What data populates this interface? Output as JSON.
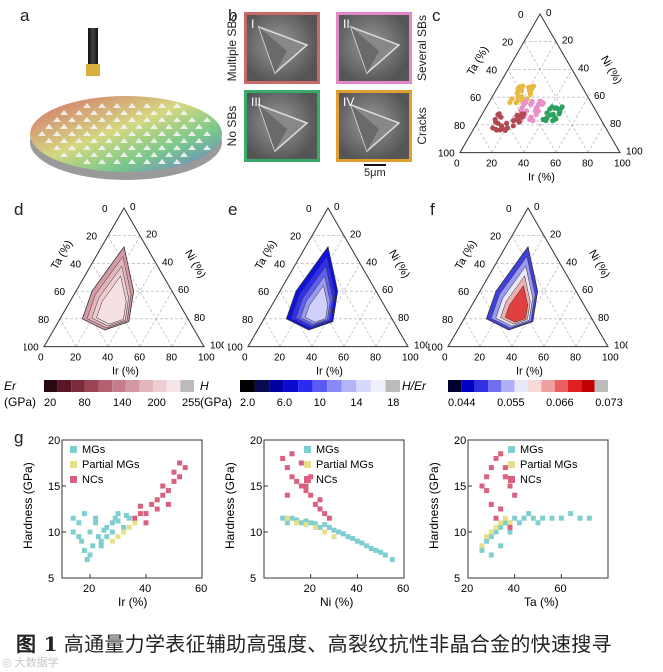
{
  "panels": {
    "a": "a",
    "b": "b",
    "c": "c",
    "d": "d",
    "e": "e",
    "f": "f",
    "g": "g"
  },
  "panel_b": {
    "quadrants": [
      {
        "roman": "I",
        "side_label": "Multiple SBs",
        "border": "#c96a6a"
      },
      {
        "roman": "II",
        "side_label": "Several SBs",
        "border": "#e088c8"
      },
      {
        "roman": "III",
        "side_label": "No SBs",
        "border": "#3aaa6a"
      },
      {
        "roman": "IV",
        "side_label": "Cracks",
        "border": "#e0a030"
      }
    ],
    "scale_bar": "5μm"
  },
  "ternary": {
    "axis_ta": "Ta (%)",
    "axis_ni": "Ni (%)",
    "axis_ir": "Ir (%)",
    "ticks": [
      "0",
      "20",
      "40",
      "60",
      "80",
      "100"
    ]
  },
  "colorbars": {
    "er": {
      "label": "Er",
      "unit": "(GPa)",
      "ticks": [
        "20",
        "80",
        "140",
        "200",
        "255"
      ],
      "colors": [
        "#2a0a12",
        "#5a1626",
        "#7a2a3a",
        "#9a4455",
        "#b46070",
        "#c47c8a",
        "#d498a4",
        "#e2b4bc",
        "#eccdd2",
        "#f5e4e8",
        "#bbbbbb"
      ]
    },
    "h": {
      "label": "H",
      "unit": "(GPa)",
      "ticks": [
        "2.0",
        "6.0",
        "10",
        "14",
        "18"
      ],
      "colors": [
        "#000000",
        "#0a0a50",
        "#0000a0",
        "#0a0ad0",
        "#2a2af0",
        "#5a5af4",
        "#8a8af6",
        "#b4b4f8",
        "#d8d8fa",
        "#f0f0fc",
        "#bbbbbb"
      ]
    },
    "he": {
      "label": "H/Er",
      "ticks": [
        "0.044",
        "0.055",
        "0.066",
        "0.073"
      ],
      "colors": [
        "#000030",
        "#0000c0",
        "#3030e0",
        "#7070ee",
        "#b0b0f4",
        "#e8e8f8",
        "#f8d8d8",
        "#f0a0a0",
        "#e86060",
        "#e02020",
        "#c00000",
        "#bbbbbb"
      ]
    }
  },
  "legend": {
    "mgs": "MGs",
    "partial": "Partial MGs",
    "ncs": "NCs",
    "colors": {
      "mgs": "#7fcfd0",
      "partial": "#e6e08a",
      "ncs": "#d9607e"
    }
  },
  "scatter_plots": [
    {
      "xlabel": "Ir (%)",
      "ylabel": "Hardness (GPa)",
      "xticks": [
        "20",
        "40",
        "60"
      ],
      "yticks": [
        "5",
        "10",
        "15",
        "20"
      ]
    },
    {
      "xlabel": "Ni (%)",
      "ylabel": "Hardness (GPa)",
      "xticks": [
        "20",
        "40",
        "60"
      ],
      "yticks": [
        "5",
        "10",
        "15",
        "20"
      ]
    },
    {
      "xlabel": "Ta (%)",
      "ylabel": "Hardness (GPa)",
      "xticks": [
        "20",
        "40",
        "60"
      ],
      "yticks": [
        "5",
        "10",
        "15",
        "20"
      ]
    }
  ],
  "chart_data": [
    {
      "type": "scatter",
      "xlabel": "Ir (%)",
      "ylabel": "Hardness (GPa)",
      "xlim": [
        10,
        60
      ],
      "ylim": [
        5,
        20
      ],
      "series": [
        {
          "name": "MGs",
          "color": "#7fcfd0",
          "x": [
            14,
            16,
            18,
            20,
            22,
            24,
            26,
            28,
            30,
            32,
            34,
            16,
            20,
            24,
            28,
            18,
            22,
            26,
            30,
            14,
            17,
            21,
            25,
            29,
            33,
            19,
            23
          ],
          "y": [
            11.5,
            9.5,
            8,
            10,
            11.5,
            9,
            10.5,
            11,
            12,
            10.5,
            11.5,
            11,
            7.5,
            8.5,
            10,
            12,
            11,
            9.5,
            11.2,
            10,
            9,
            8.5,
            10.2,
            11.5,
            11.8,
            7,
            9.5
          ]
        },
        {
          "name": "Partial MGs",
          "color": "#e6e08a",
          "x": [
            28,
            30,
            32,
            34,
            36
          ],
          "y": [
            9,
            9.5,
            10,
            10.5,
            11
          ]
        },
        {
          "name": "NCs",
          "color": "#d9607e",
          "x": [
            36,
            38,
            40,
            42,
            44,
            46,
            48,
            50,
            52,
            54,
            40,
            44,
            48,
            52,
            38,
            46,
            50
          ],
          "y": [
            11.5,
            12,
            12,
            13,
            13.5,
            14,
            14.5,
            15.5,
            16,
            17,
            11,
            12.5,
            13,
            17.5,
            12.8,
            15,
            16.5
          ]
        }
      ]
    },
    {
      "type": "scatter",
      "xlabel": "Ni (%)",
      "ylabel": "Hardness (GPa)",
      "xlim": [
        0,
        60
      ],
      "ylim": [
        5,
        20
      ],
      "series": [
        {
          "name": "MGs",
          "color": "#7fcfd0",
          "x": [
            8,
            12,
            16,
            20,
            24,
            28,
            32,
            36,
            40,
            44,
            48,
            52,
            55,
            10,
            18,
            26,
            34,
            42,
            50,
            14,
            22,
            30,
            38,
            46
          ],
          "y": [
            11.5,
            11.5,
            11,
            11,
            10.5,
            10.5,
            10,
            9.5,
            9,
            8.5,
            8,
            7.5,
            7,
            11,
            11.2,
            10.8,
            9.8,
            8.8,
            7.8,
            11.3,
            10.9,
            10.2,
            9.3,
            8.2
          ]
        },
        {
          "name": "Partial MGs",
          "color": "#e6e08a",
          "x": [
            10,
            14,
            18,
            22,
            26,
            30
          ],
          "y": [
            11.5,
            11,
            10.8,
            10.5,
            10,
            9.5
          ]
        },
        {
          "name": "NCs",
          "color": "#d9607e",
          "x": [
            8,
            10,
            12,
            14,
            16,
            18,
            20,
            22,
            24,
            26,
            28,
            12,
            16,
            20,
            24,
            10,
            18
          ],
          "y": [
            18,
            17,
            16,
            15.5,
            15,
            14.5,
            14,
            13,
            12.5,
            12,
            11.5,
            18.5,
            17.5,
            16,
            13.5,
            14,
            15
          ]
        }
      ]
    },
    {
      "type": "scatter",
      "xlabel": "Ta (%)",
      "ylabel": "Hardness (GPa)",
      "xlim": [
        20,
        80
      ],
      "ylim": [
        5,
        20
      ],
      "series": [
        {
          "name": "MGs",
          "color": "#7fcfd0",
          "x": [
            26,
            28,
            30,
            32,
            34,
            36,
            38,
            40,
            44,
            48,
            52,
            56,
            60,
            64,
            68,
            72,
            30,
            34,
            38,
            42,
            46,
            50
          ],
          "y": [
            8,
            9,
            9.5,
            10,
            10.5,
            11,
            11,
            11.5,
            11.5,
            11.5,
            11.5,
            11.5,
            11.5,
            12,
            11.5,
            11.5,
            7.5,
            8.5,
            10,
            11,
            12,
            11
          ]
        },
        {
          "name": "Partial MGs",
          "color": "#e6e08a",
          "x": [
            26,
            28,
            30,
            32,
            34,
            36,
            38
          ],
          "y": [
            8.5,
            9.5,
            10,
            10.5,
            11,
            11.5,
            11
          ]
        },
        {
          "name": "NCs",
          "color": "#d9607e",
          "x": [
            26,
            28,
            30,
            32,
            34,
            36,
            38,
            40,
            30,
            34,
            28,
            36,
            32,
            38
          ],
          "y": [
            15,
            16,
            17,
            18,
            18.5,
            17,
            15,
            14,
            13,
            12.5,
            14.5,
            16,
            11.5,
            10.5
          ]
        }
      ]
    }
  ],
  "caption": {
    "fig": "图 1",
    "text": "高通量力学表征辅助高强度、高裂纹抗性非晶合金的快速搜寻"
  },
  "watermark": "◎ 大数据学"
}
